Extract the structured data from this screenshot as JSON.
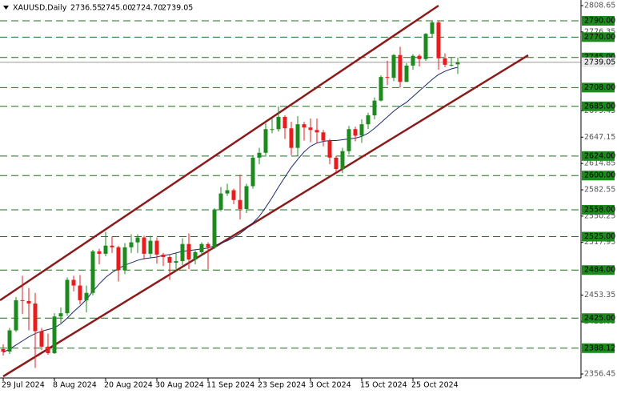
{
  "chart_data": {
    "type": "candlestick",
    "title": "XAUUSD,Daily",
    "last_bar_labels": [
      "2736.55",
      "2745.00",
      "2724.70",
      "2739.05"
    ],
    "categories": [
      "29 Jul 2024",
      null,
      null,
      null,
      null,
      null,
      null,
      null,
      "8 Aug 2024",
      null,
      null,
      null,
      null,
      null,
      null,
      null,
      "20 Aug 2024",
      null,
      null,
      null,
      null,
      null,
      null,
      null,
      "30 Aug 2024",
      null,
      null,
      null,
      null,
      null,
      null,
      null,
      "11 Sep 2024",
      null,
      null,
      null,
      null,
      null,
      null,
      null,
      "23 Sep 2024",
      null,
      null,
      null,
      null,
      null,
      null,
      null,
      "3 Oct 2024",
      null,
      null,
      null,
      null,
      null,
      null,
      null,
      "15 Oct 2024",
      null,
      null,
      null,
      null,
      null,
      null,
      null,
      "25 Oct 2024",
      null,
      null,
      null,
      null,
      null,
      null,
      null
    ],
    "open": [
      2387,
      2384,
      2410,
      2447,
      2446,
      2443,
      2409,
      2390,
      2382,
      2427,
      2431,
      2472,
      2465,
      2447,
      2456,
      2507,
      2504,
      2514,
      2512,
      2484,
      2512,
      2518,
      2524,
      2504,
      2520,
      2503,
      2500,
      2493,
      2495,
      2516,
      2497,
      2506,
      2516,
      2512,
      2558,
      2578,
      2582,
      2570,
      2559,
      2587,
      2622,
      2628,
      2657,
      2657,
      2672,
      2658,
      2634,
      2663,
      2659,
      2656,
      2653,
      2643,
      2622,
      2608,
      2630,
      2657,
      2649,
      2663,
      2674,
      2692,
      2721,
      2720,
      2748,
      2715,
      2735,
      2747,
      2743,
      2774,
      2788,
      2744,
      2736,
      2736.55
    ],
    "high": [
      2393,
      2413,
      2451,
      2477,
      2462,
      2456,
      2413,
      2406,
      2431,
      2438,
      2475,
      2477,
      2478,
      2465,
      2509,
      2510,
      2531,
      2525,
      2514,
      2517,
      2528,
      2528,
      2526,
      2526,
      2524,
      2505,
      2503,
      2505,
      2523,
      2529,
      2508,
      2518,
      2518,
      2560,
      2586,
      2590,
      2584,
      2601,
      2590,
      2625,
      2634,
      2664,
      2670,
      2685,
      2674,
      2666,
      2673,
      2666,
      2670,
      2670,
      2656,
      2645,
      2624,
      2634,
      2661,
      2660,
      2669,
      2677,
      2696,
      2723,
      2741,
      2749,
      2758,
      2738,
      2749,
      2749,
      2775,
      2790,
      2790,
      2750,
      2745,
      2745
    ],
    "low": [
      2379,
      2381,
      2408,
      2430,
      2410,
      2364,
      2386,
      2380,
      2381,
      2419,
      2428,
      2458,
      2442,
      2432,
      2453,
      2491,
      2501,
      2505,
      2470,
      2479,
      2505,
      2505,
      2497,
      2499,
      2492,
      2489,
      2472,
      2482,
      2490,
      2485,
      2491,
      2502,
      2485,
      2510,
      2556,
      2575,
      2565,
      2546,
      2554,
      2584,
      2614,
      2623,
      2652,
      2654,
      2645,
      2625,
      2624,
      2643,
      2641,
      2640,
      2636,
      2614,
      2604,
      2603,
      2626,
      2642,
      2640,
      2657,
      2669,
      2691,
      2711,
      2716,
      2708,
      2715,
      2730,
      2734,
      2741,
      2770,
      2730,
      2733,
      2734,
      2724.7
    ],
    "close": [
      2384,
      2410,
      2447,
      2446,
      2443,
      2409,
      2390,
      2382,
      2427,
      2431,
      2472,
      2465,
      2447,
      2456,
      2507,
      2504,
      2514,
      2512,
      2484,
      2512,
      2518,
      2524,
      2504,
      2520,
      2503,
      2500,
      2493,
      2495,
      2516,
      2497,
      2506,
      2516,
      2512,
      2558,
      2578,
      2582,
      2570,
      2559,
      2587,
      2622,
      2628,
      2657,
      2657,
      2672,
      2658,
      2634,
      2663,
      2659,
      2656,
      2653,
      2643,
      2622,
      2608,
      2630,
      2657,
      2649,
      2663,
      2674,
      2692,
      2721,
      2720,
      2748,
      2715,
      2735,
      2747,
      2743,
      2774,
      2788,
      2744,
      2736,
      2736,
      2739.05
    ],
    "ma": [
      2383,
      2387,
      2392,
      2397,
      2402,
      2406,
      2409,
      2411,
      2413,
      2418,
      2425,
      2433,
      2440,
      2448,
      2458,
      2467,
      2475,
      2481,
      2486,
      2490,
      2493,
      2496,
      2498,
      2499,
      2500,
      2502,
      2503,
      2505,
      2507,
      2508,
      2509,
      2510,
      2511,
      2514,
      2517,
      2520,
      2524,
      2529,
      2535,
      2542,
      2550,
      2561,
      2573,
      2586,
      2598,
      2610,
      2620,
      2629,
      2636,
      2640,
      2642,
      2643,
      2643,
      2644,
      2645,
      2646,
      2648,
      2652,
      2658,
      2665,
      2672,
      2679,
      2685,
      2690,
      2697,
      2704,
      2711,
      2718,
      2724,
      2728,
      2731,
      2733
    ],
    "up_color": "#1d8a1d",
    "down_color": "#e81c1c",
    "ma_color": "#1a2a6e",
    "level_color": "#1f6e1f",
    "ylim": [
      2356.45,
      2808.65
    ],
    "yticks": [
      2356.45,
      2421.05,
      2453.35,
      2517.95,
      2550.25,
      2582.55,
      2614.85,
      2647.15,
      2679.45,
      2776.35,
      2808.65
    ],
    "levels": [
      {
        "value": 2790,
        "label": "2790.00"
      },
      {
        "value": 2770,
        "label": "2770.00"
      },
      {
        "value": 2745,
        "label": "2745.00"
      },
      {
        "value": 2708,
        "label": "2708.00"
      },
      {
        "value": 2685,
        "label": "2685.00"
      },
      {
        "value": 2624,
        "label": "2624.00"
      },
      {
        "value": 2600,
        "label": "2600.00"
      },
      {
        "value": 2558,
        "label": "2558.00"
      },
      {
        "value": 2525,
        "label": "2525.00"
      },
      {
        "value": 2484,
        "label": "2484.00"
      },
      {
        "value": 2425,
        "label": "2425.00"
      },
      2388.12
    ]
  }
}
